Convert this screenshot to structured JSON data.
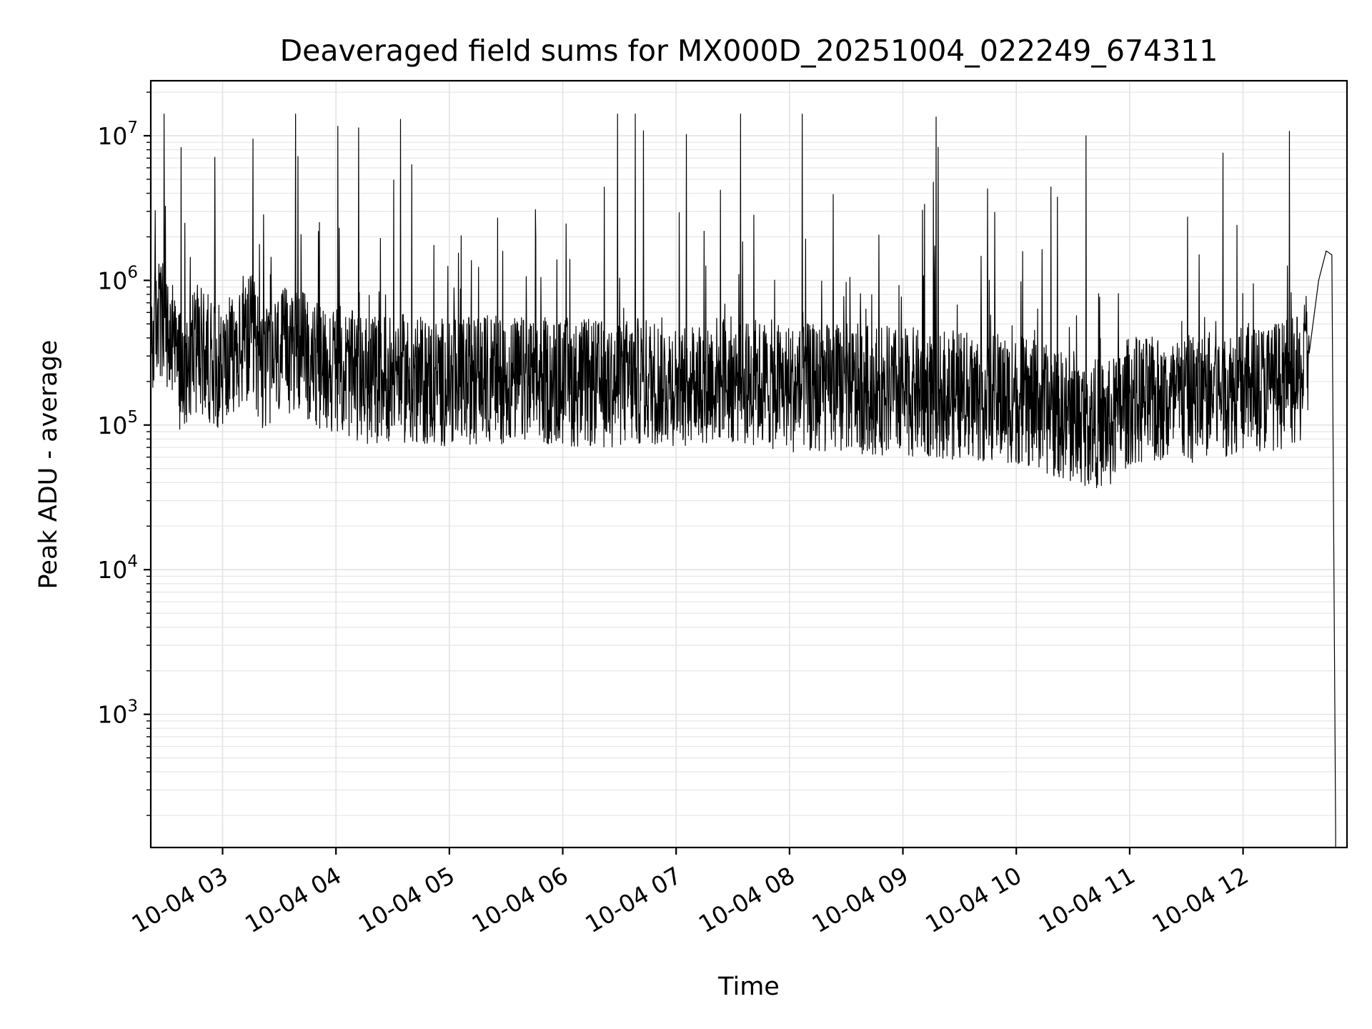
{
  "chart_data": {
    "type": "line",
    "title": "Deaveraged field sums for MX000D_20251004_022249_674311",
    "xlabel": "Time",
    "ylabel": "Peak ADU - average",
    "y_scale": "log",
    "xlim": [
      "2025-10-04 02:22",
      "2025-10-04 12:55"
    ],
    "ylim": [
      120,
      24000000
    ],
    "grid": true,
    "x_ticks": [
      "10-04 03",
      "10-04 04",
      "10-04 05",
      "10-04 06",
      "10-04 07",
      "10-04 08",
      "10-04 09",
      "10-04 10",
      "10-04 11",
      "10-04 12"
    ],
    "x_tick_times": [
      "2025-10-04 03:00",
      "2025-10-04 04:00",
      "2025-10-04 05:00",
      "2025-10-04 06:00",
      "2025-10-04 07:00",
      "2025-10-04 08:00",
      "2025-10-04 09:00",
      "2025-10-04 10:00",
      "2025-10-04 11:00",
      "2025-10-04 12:00"
    ],
    "y_ticks": [
      {
        "base": "10",
        "exp": "3",
        "value": 1000
      },
      {
        "base": "10",
        "exp": "4",
        "value": 10000
      },
      {
        "base": "10",
        "exp": "5",
        "value": 100000
      },
      {
        "base": "10",
        "exp": "6",
        "value": 1000000
      },
      {
        "base": "10",
        "exp": "7",
        "value": 10000000
      }
    ],
    "line_color": "#000000",
    "series": [
      {
        "x": [
          "2025-10-04 02:22",
          "2025-10-04 02:25",
          "2025-10-04 02:31",
          "2025-10-04 02:38",
          "2025-10-04 02:45",
          "2025-10-04 02:52",
          "2025-10-04 03:00",
          "2025-10-04 03:08",
          "2025-10-04 03:15",
          "2025-10-04 03:22",
          "2025-10-04 03:30",
          "2025-10-04 03:40",
          "2025-10-04 03:50",
          "2025-10-04 04:00",
          "2025-10-04 04:15",
          "2025-10-04 04:30",
          "2025-10-04 04:45",
          "2025-10-04 05:00",
          "2025-10-04 05:20",
          "2025-10-04 05:40",
          "2025-10-04 06:00",
          "2025-10-04 06:20",
          "2025-10-04 06:40",
          "2025-10-04 07:00",
          "2025-10-04 07:20",
          "2025-10-04 07:40",
          "2025-10-04 08:00",
          "2025-10-04 08:30",
          "2025-10-04 09:00",
          "2025-10-04 09:30",
          "2025-10-04 10:00",
          "2025-10-04 10:30",
          "2025-10-04 10:50",
          "2025-10-04 11:00",
          "2025-10-04 11:20",
          "2025-10-04 11:40",
          "2025-10-04 12:00",
          "2025-10-04 12:20",
          "2025-10-04 12:30",
          "2025-10-04 12:35",
          "2025-10-04 12:40",
          "2025-10-04 12:44",
          "2025-10-04 12:47",
          "2025-10-04 12:49"
        ],
        "y": [
          300000,
          600000,
          400000,
          250000,
          350000,
          300000,
          250000,
          300000,
          400000,
          250000,
          300000,
          350000,
          250000,
          250000,
          200000,
          220000,
          200000,
          200000,
          210000,
          200000,
          200000,
          190000,
          200000,
          200000,
          210000,
          200000,
          180000,
          180000,
          170000,
          160000,
          150000,
          110000,
          100000,
          150000,
          140000,
          160000,
          180000,
          190000,
          200000,
          300000,
          1000000,
          1600000,
          1500000,
          150
        ]
      }
    ]
  }
}
